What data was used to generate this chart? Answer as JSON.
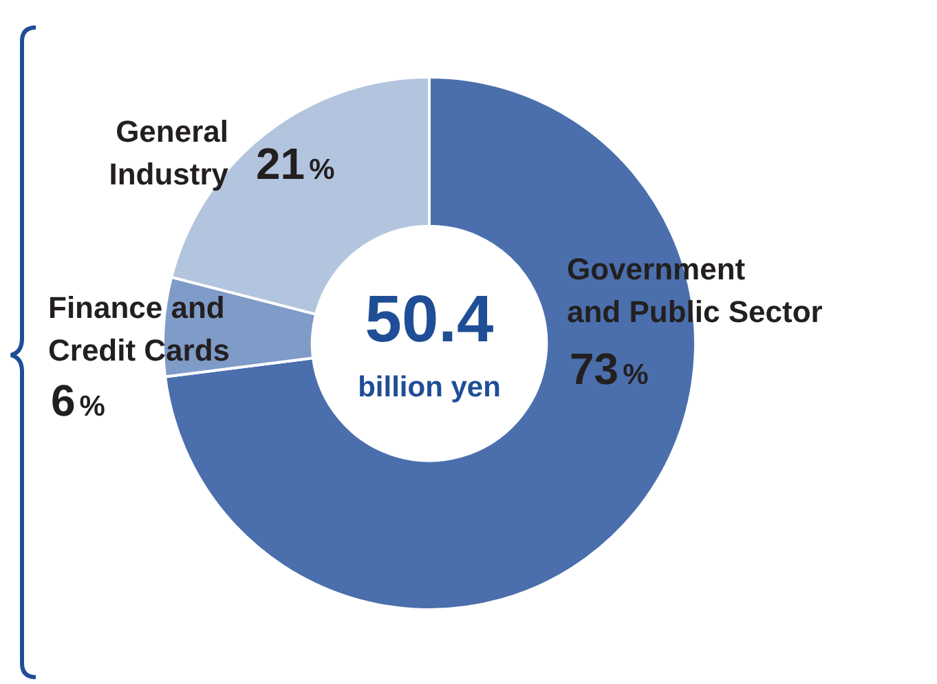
{
  "chart_data": {
    "type": "donut",
    "categories": [
      "Government and Public Sector",
      "Finance and Credit Cards",
      "General Industry"
    ],
    "values": [
      73,
      6,
      21
    ],
    "colors": [
      "#4a6fac",
      "#7f9bc8",
      "#b3c5de"
    ],
    "value_labels": [
      "73%",
      "6%",
      "21%"
    ],
    "annotations": [
      "50.4",
      "billion yen"
    ],
    "legend": false
  }
}
